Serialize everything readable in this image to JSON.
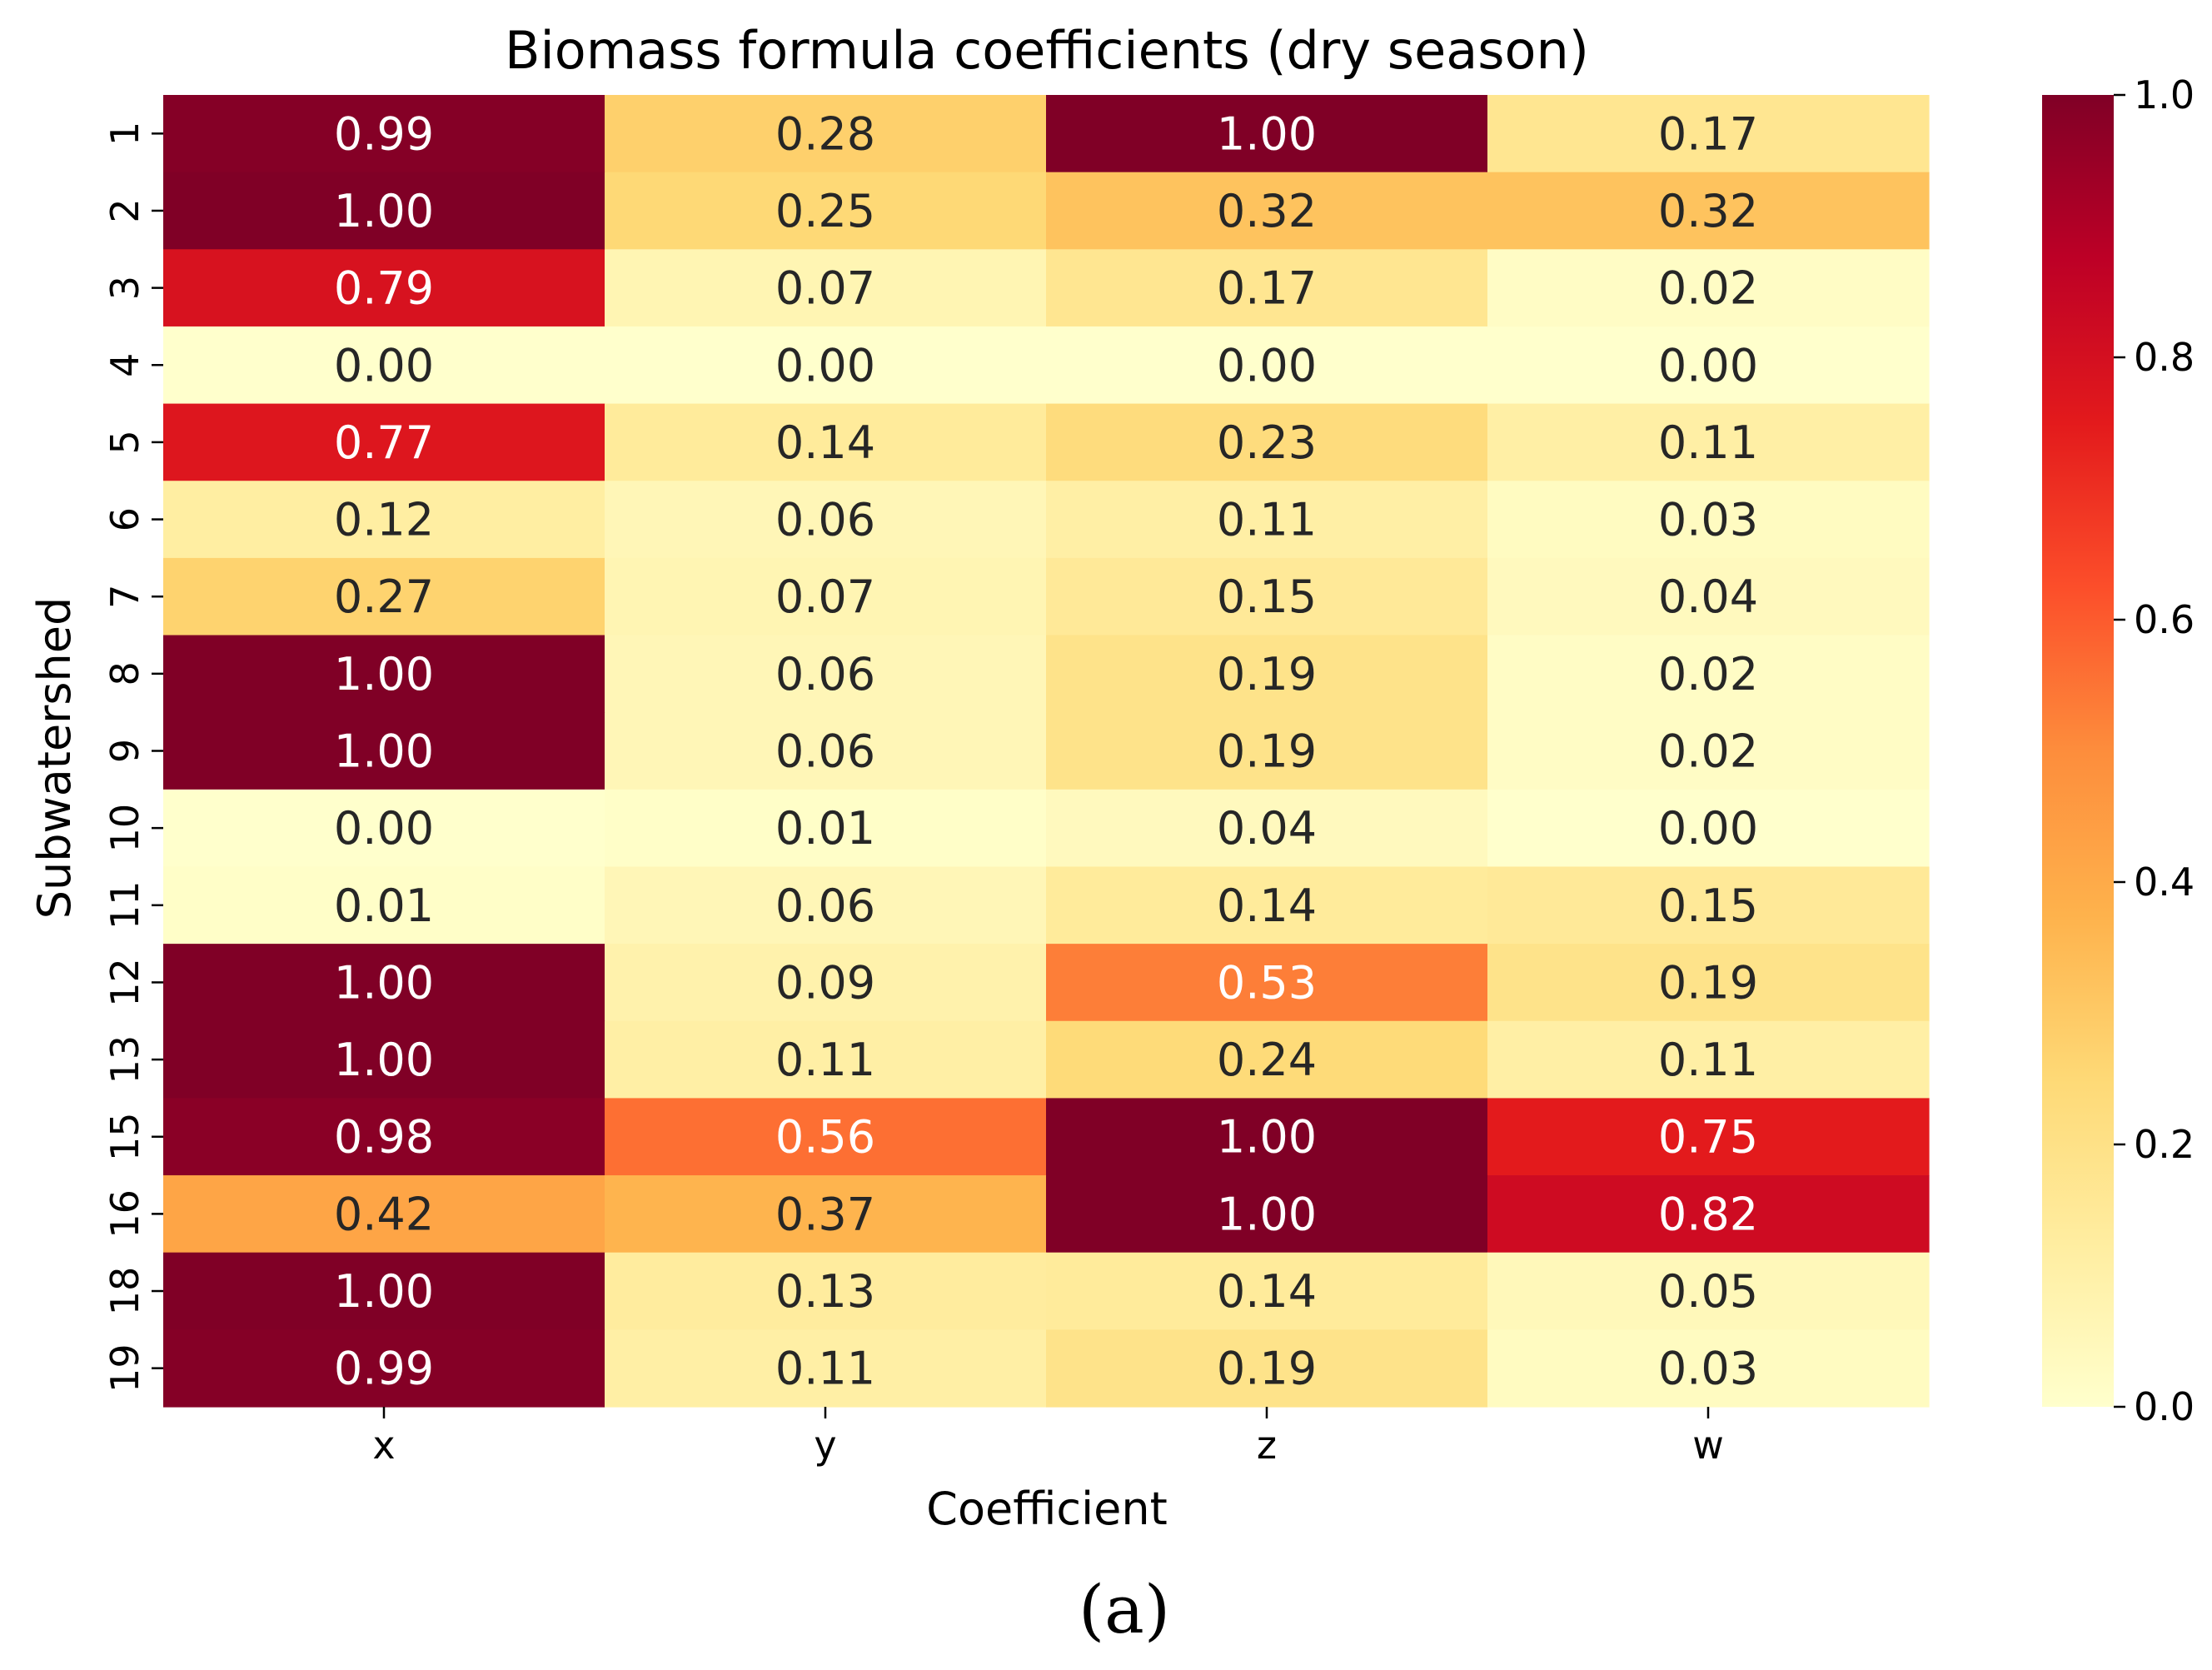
{
  "chart_data": {
    "type": "heatmap",
    "title": "Biomass formula coefficients (dry season)",
    "xlabel": "Coefficient",
    "ylabel": "Subwatershed",
    "columns": [
      "x",
      "y",
      "z",
      "w"
    ],
    "rows": [
      "1",
      "2",
      "3",
      "4",
      "5",
      "6",
      "7",
      "8",
      "9",
      "10",
      "11",
      "12",
      "13",
      "15",
      "16",
      "18",
      "19"
    ],
    "values": [
      [
        0.99,
        0.28,
        1.0,
        0.17
      ],
      [
        1.0,
        0.25,
        0.32,
        0.32
      ],
      [
        0.79,
        0.07,
        0.17,
        0.02
      ],
      [
        0.0,
        0.0,
        0.0,
        0.0
      ],
      [
        0.77,
        0.14,
        0.23,
        0.11
      ],
      [
        0.12,
        0.06,
        0.11,
        0.03
      ],
      [
        0.27,
        0.07,
        0.15,
        0.04
      ],
      [
        1.0,
        0.06,
        0.19,
        0.02
      ],
      [
        1.0,
        0.06,
        0.19,
        0.02
      ],
      [
        0.0,
        0.01,
        0.04,
        0.0
      ],
      [
        0.01,
        0.06,
        0.14,
        0.15
      ],
      [
        1.0,
        0.09,
        0.53,
        0.19
      ],
      [
        1.0,
        0.11,
        0.24,
        0.11
      ],
      [
        0.98,
        0.56,
        1.0,
        0.75
      ],
      [
        0.42,
        0.37,
        1.0,
        0.82
      ],
      [
        1.0,
        0.13,
        0.14,
        0.05
      ],
      [
        0.99,
        0.11,
        0.19,
        0.03
      ]
    ],
    "colorbar": {
      "range": [
        0.0,
        1.0
      ],
      "ticks": [
        0.0,
        0.2,
        0.4,
        0.6,
        0.8,
        1.0
      ],
      "tick_labels": [
        "0.0",
        "0.2",
        "0.4",
        "0.6",
        "0.8",
        "1.0"
      ],
      "colormap": "YlOrRd"
    },
    "caption": "(a)"
  }
}
